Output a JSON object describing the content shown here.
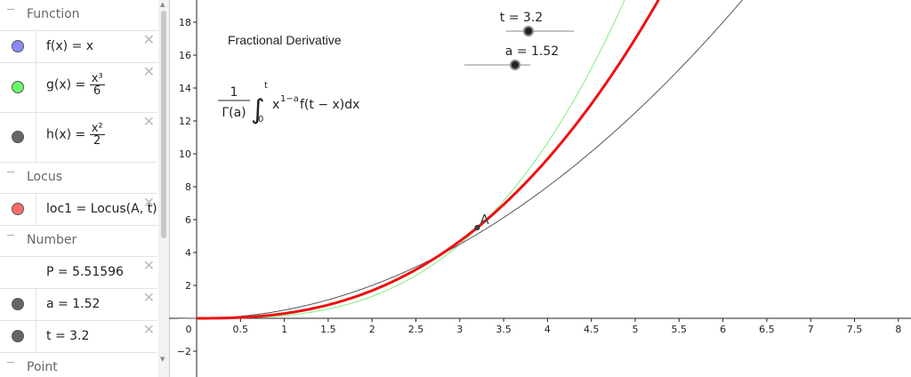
{
  "algebra": {
    "groups": [
      {
        "title": "Function"
      },
      {
        "title": "Locus"
      },
      {
        "title": "Number"
      },
      {
        "title": "Point"
      }
    ],
    "items": [
      {
        "lhs": "f(x) = x",
        "color": "#8a8aff"
      },
      {
        "lhs": "g(x) = ",
        "num": "x³",
        "den": "6",
        "color": "#66ff66"
      },
      {
        "lhs": "h(x) = ",
        "num": "x²",
        "den": "2",
        "color": "#666666"
      },
      {
        "lhs": "loc1 = Locus(A, t)",
        "color": "#ff6b6b"
      },
      {
        "lhs": "P = 5.51596"
      },
      {
        "lhs": "a = 1.52",
        "color": "#666666"
      },
      {
        "lhs": "t = 3.2",
        "color": "#666666"
      }
    ],
    "delete_symbol": "✕",
    "collapse_symbol": "−"
  },
  "graph": {
    "title": "Fractional Derivative",
    "formula": {
      "coef_num": "1",
      "coef_den": "Γ(a)",
      "integral": "∫",
      "upper": "t",
      "lower": "0",
      "body": "x",
      "exp": "1−a",
      "rest": "f(t − x)dx"
    },
    "sliders": [
      {
        "label": "t = 3.2",
        "value": 3.2,
        "min": 0,
        "max": 5
      },
      {
        "label": "a = 1.52",
        "value": 1.52,
        "min": 0,
        "max": 2
      }
    ],
    "point": {
      "label": "A",
      "x": 3.2,
      "y": 5.51596
    }
  },
  "chart_data": {
    "type": "line",
    "x_ticks": [
      0,
      0.5,
      1,
      1.5,
      2,
      2.5,
      3,
      3.5,
      4,
      4.5,
      5,
      5.5,
      6,
      6.5,
      7,
      7.5,
      8
    ],
    "x_tick_labels": [
      "0",
      "0.5",
      "1",
      "1.5",
      "2",
      "2.5",
      "3",
      "3.5",
      "4",
      "4.5",
      "5",
      "5.5",
      "6",
      "6.5",
      "7",
      "7.5",
      "8"
    ],
    "y_ticks": [
      -2,
      2,
      4,
      6,
      8,
      10,
      12,
      14,
      16,
      18
    ],
    "y_tick_labels": [
      "−2",
      "2",
      "4",
      "6",
      "8",
      "10",
      "12",
      "14",
      "16",
      "18"
    ],
    "xlim": [
      -0.2,
      8.3
    ],
    "ylim": [
      -2.5,
      19.3
    ],
    "series": [
      {
        "id": "g",
        "color": "#7cf07c",
        "width": 1,
        "fn": "x^3/6"
      },
      {
        "id": "h",
        "color": "#555555",
        "width": 1,
        "fn": "x^2/2"
      },
      {
        "id": "loc1",
        "color": "#ee1111",
        "width": 3,
        "fn": "x^2.52/Gamma(3.52)"
      }
    ]
  }
}
